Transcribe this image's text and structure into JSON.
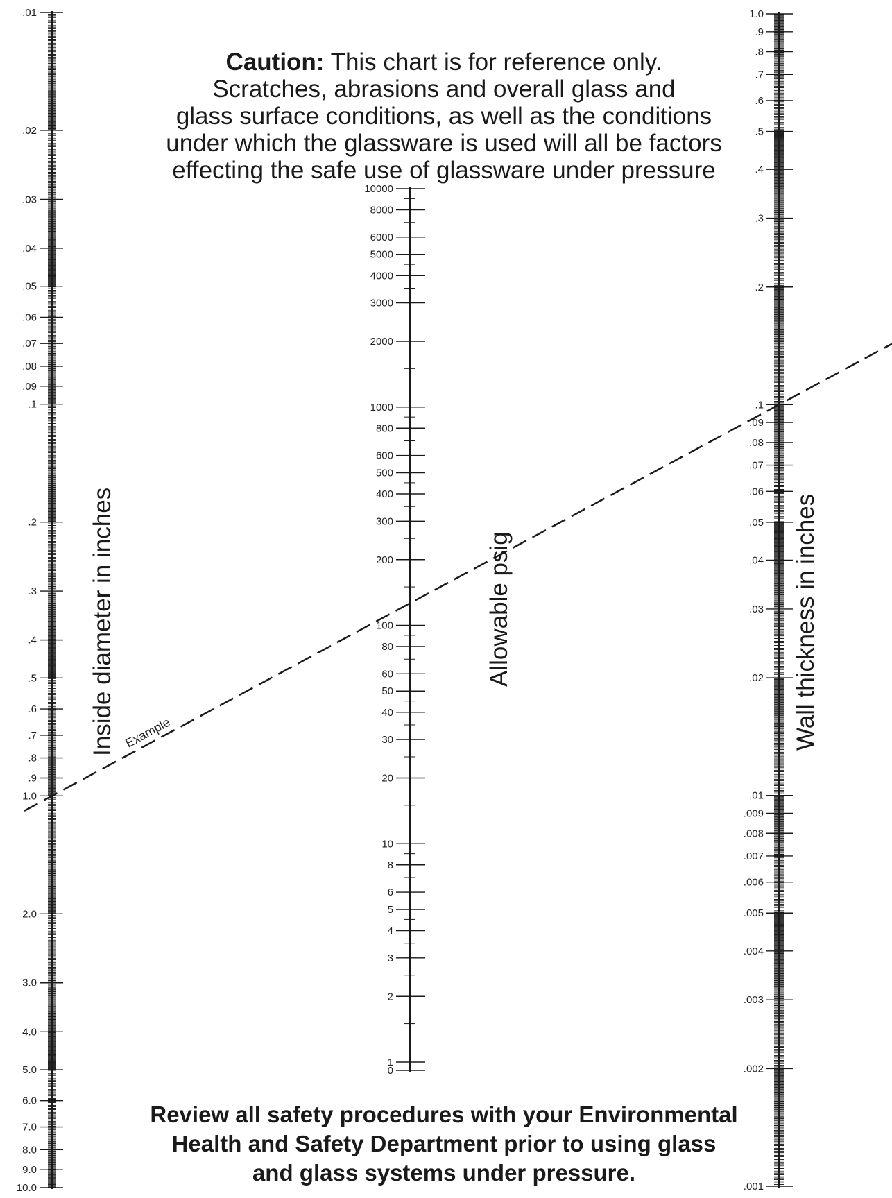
{
  "caution": {
    "lead": "Caution:",
    "lines": [
      "This chart is for reference only.",
      "Scratches, abrasions and overall glass and",
      "glass surface conditions, as well as the conditions",
      "under which the glassware is used will all be factors",
      "effecting the safe use of glassware under pressure"
    ]
  },
  "review": {
    "lines": [
      "Review all safety procedures with your Environmental",
      "Health and Safety Department prior to using glass",
      "and glass systems under pressure."
    ]
  },
  "scales": {
    "inside_diameter": {
      "title": "Inside diameter in inches",
      "labels": [
        ".01",
        ".02",
        ".03",
        ".04",
        ".05",
        ".06",
        ".07",
        ".08",
        ".09",
        ".1",
        ".2",
        ".3",
        ".4",
        ".5",
        ".6",
        ".7",
        ".8",
        ".9",
        "1.0",
        "2.0",
        "3.0",
        "4.0",
        "5.0",
        "6.0",
        "7.0",
        "8.0",
        "9.0",
        "10.0"
      ],
      "values": [
        0.01,
        0.02,
        0.03,
        0.04,
        0.05,
        0.06,
        0.07,
        0.08,
        0.09,
        0.1,
        0.2,
        0.3,
        0.4,
        0.5,
        0.6,
        0.7,
        0.8,
        0.9,
        1.0,
        2.0,
        3.0,
        4.0,
        5.0,
        6.0,
        7.0,
        8.0,
        9.0,
        10.0
      ],
      "scale": "log",
      "range": [
        0.01,
        10.0
      ]
    },
    "allowable_psig": {
      "title": "Allowable psig",
      "labels": [
        "10000",
        "8000",
        "6000",
        "5000",
        "4000",
        "3000",
        "2000",
        "1000",
        "800",
        "600",
        "500",
        "400",
        "300",
        "200",
        "100",
        "80",
        "60",
        "50",
        "40",
        "30",
        "20",
        "10",
        "8",
        "6",
        "5",
        "4",
        "3",
        "2",
        "1",
        "0"
      ],
      "values": [
        10000,
        8000,
        6000,
        5000,
        4000,
        3000,
        2000,
        1000,
        800,
        600,
        500,
        400,
        300,
        200,
        100,
        80,
        60,
        50,
        40,
        30,
        20,
        10,
        8,
        6,
        5,
        4,
        3,
        2,
        1,
        0
      ],
      "scale": "log"
    },
    "wall_thickness": {
      "title": "Wall thickness in inches",
      "labels": [
        "1.0",
        ".9",
        ".8",
        ".7",
        ".6",
        ".5",
        ".4",
        ".3",
        ".2",
        ".1",
        ".09",
        ".08",
        ".07",
        ".06",
        ".05",
        ".04",
        ".03",
        ".02",
        ".01",
        ".009",
        ".008",
        ".007",
        ".006",
        ".005",
        ".004",
        ".003",
        ".002",
        ".001"
      ],
      "values": [
        1.0,
        0.9,
        0.8,
        0.7,
        0.6,
        0.5,
        0.4,
        0.3,
        0.2,
        0.1,
        0.09,
        0.08,
        0.07,
        0.06,
        0.05,
        0.04,
        0.03,
        0.02,
        0.01,
        0.009,
        0.008,
        0.007,
        0.006,
        0.005,
        0.004,
        0.003,
        0.002,
        0.001
      ],
      "scale": "log",
      "range": [
        0.001,
        1.0
      ]
    }
  },
  "example": {
    "label": "Example",
    "inside_diameter": 1.0,
    "allowable_psig": 200,
    "wall_thickness": 0.1
  },
  "colors": {
    "ink": "#1a1a1a",
    "background": "#ffffff"
  }
}
